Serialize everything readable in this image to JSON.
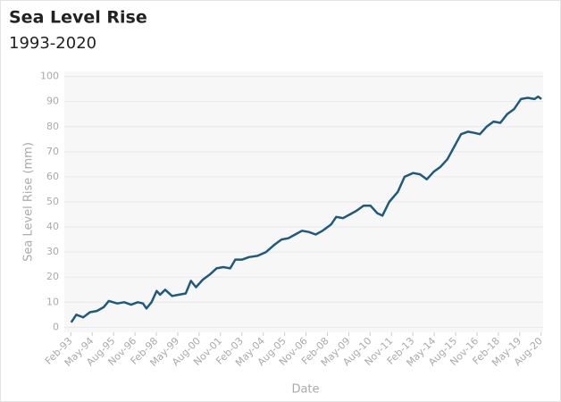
{
  "chart_data": {
    "type": "line",
    "title": "Sea Level Rise",
    "subtitle": "1993-2020",
    "x_label": "Date",
    "y_label": "Sea Level Rise (mm)",
    "color": "#1f5a7e",
    "grid": true,
    "x": [
      1993.1,
      1993.4,
      1993.8,
      1994.2,
      1994.6,
      1995.0,
      1995.3,
      1995.8,
      1996.2,
      1996.6,
      1997.0,
      1997.3,
      1997.5,
      1997.8,
      1998.1,
      1998.3,
      1998.6,
      1999.0,
      1999.4,
      1999.8,
      2000.1,
      2000.4,
      2000.8,
      2001.2,
      2001.6,
      2002.0,
      2002.4,
      2002.7,
      2003.1,
      2003.5,
      2004.0,
      2004.5,
      2005.0,
      2005.4,
      2005.8,
      2006.2,
      2006.6,
      2007.0,
      2007.4,
      2007.8,
      2008.3,
      2008.6,
      2009.0,
      2009.4,
      2009.8,
      2010.2,
      2010.6,
      2011.0,
      2011.3,
      2011.7,
      2012.2,
      2012.6,
      2013.1,
      2013.5,
      2013.9,
      2014.3,
      2014.7,
      2015.1,
      2015.5,
      2015.9,
      2016.3,
      2016.7,
      2017.0,
      2017.4,
      2017.8,
      2018.2,
      2018.6,
      2019.0,
      2019.4,
      2019.8,
      2020.2,
      2020.4,
      2020.6
    ],
    "values": [
      2,
      5,
      4,
      6,
      6.5,
      8,
      10.5,
      9.5,
      10,
      9,
      10,
      9.5,
      7.5,
      10,
      14.5,
      13,
      15,
      12.5,
      13,
      13.5,
      18.5,
      16,
      19,
      21,
      23.5,
      24,
      23.5,
      27,
      27,
      28,
      28.5,
      30,
      33,
      35,
      35.5,
      37,
      38.5,
      38,
      37,
      38.5,
      41,
      44,
      43.5,
      45,
      46.5,
      48.5,
      48.5,
      45.5,
      44.5,
      50,
      54,
      60,
      61.5,
      61,
      59,
      62,
      64,
      67,
      72,
      77,
      78,
      77.5,
      77,
      80,
      82,
      81.5,
      85,
      87,
      91,
      91.5,
      91,
      92,
      91
    ],
    "xlim": [
      1992.7,
      2020.7
    ],
    "xticks": [
      {
        "value": 1993.083,
        "label": "Feb-93"
      },
      {
        "value": 1994.333,
        "label": "May-94"
      },
      {
        "value": 1995.583,
        "label": "Aug-95"
      },
      {
        "value": 1996.833,
        "label": "Nov-96"
      },
      {
        "value": 1998.083,
        "label": "Feb-98"
      },
      {
        "value": 1999.333,
        "label": "May-99"
      },
      {
        "value": 2000.583,
        "label": "Aug-00"
      },
      {
        "value": 2001.833,
        "label": "Nov-01"
      },
      {
        "value": 2003.083,
        "label": "Feb-03"
      },
      {
        "value": 2004.333,
        "label": "May-04"
      },
      {
        "value": 2005.583,
        "label": "Aug-05"
      },
      {
        "value": 2006.833,
        "label": "Nov-06"
      },
      {
        "value": 2008.083,
        "label": "Feb-08"
      },
      {
        "value": 2009.333,
        "label": "May-09"
      },
      {
        "value": 2010.583,
        "label": "Aug-10"
      },
      {
        "value": 2011.833,
        "label": "Nov-11"
      },
      {
        "value": 2013.083,
        "label": "Feb-13"
      },
      {
        "value": 2014.333,
        "label": "May-14"
      },
      {
        "value": 2015.583,
        "label": "Aug-15"
      },
      {
        "value": 2016.833,
        "label": "Nov-16"
      },
      {
        "value": 2018.083,
        "label": "Feb-18"
      },
      {
        "value": 2019.333,
        "label": "May-19"
      },
      {
        "value": 2020.583,
        "label": "Aug-20"
      }
    ],
    "ylim": [
      -2,
      100
    ],
    "yticks": [
      0,
      10,
      20,
      30,
      40,
      50,
      60,
      70,
      80,
      90,
      100
    ]
  }
}
